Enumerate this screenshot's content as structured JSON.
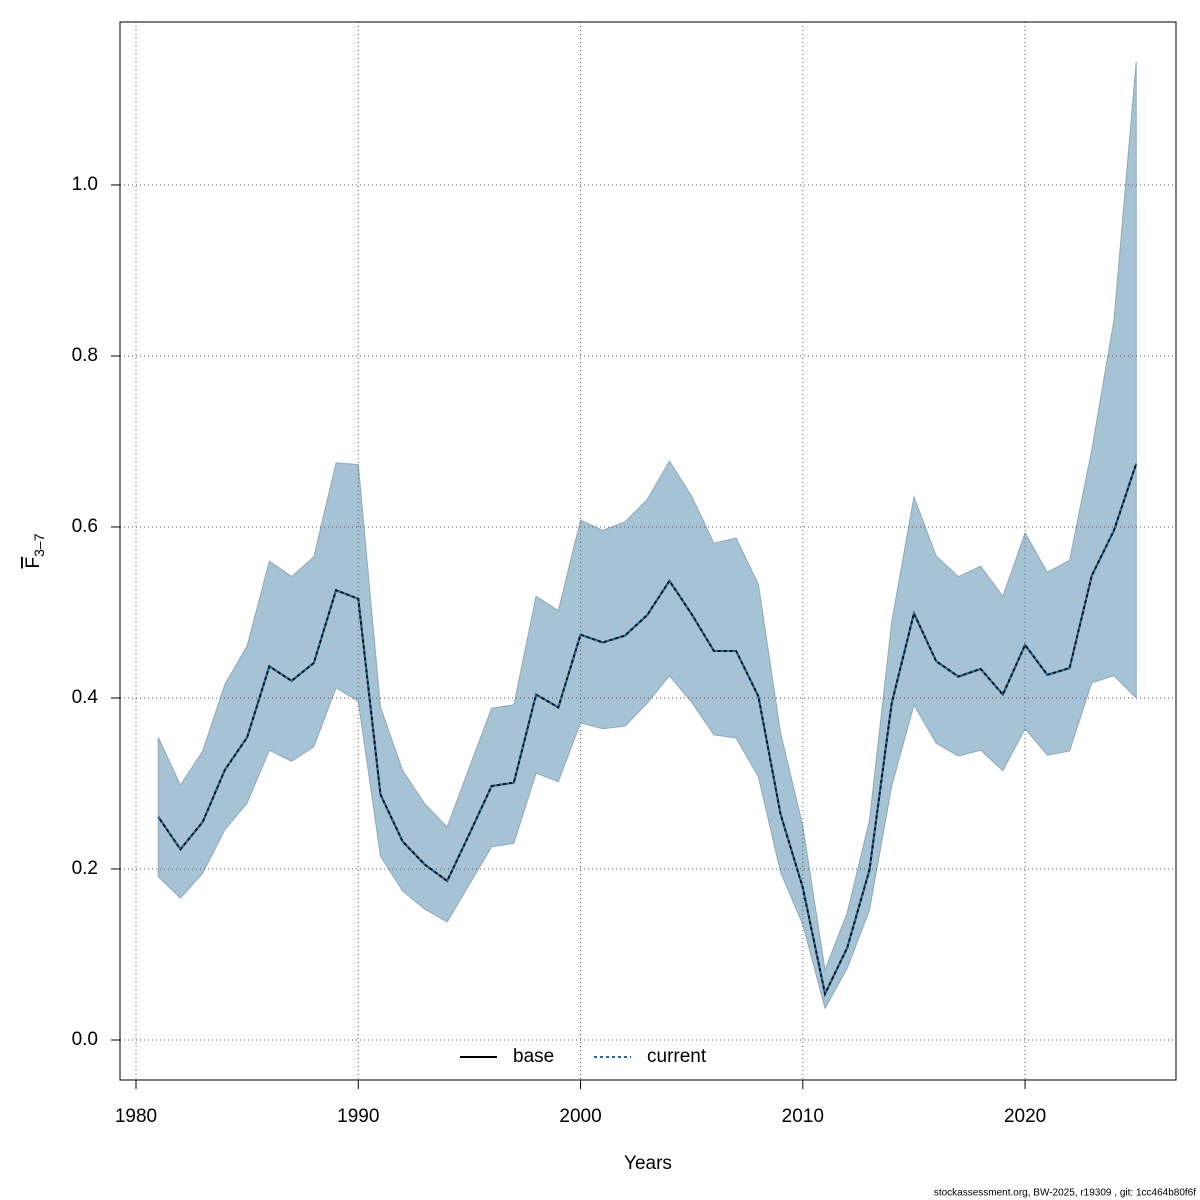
{
  "chart_data": {
    "type": "band-line",
    "x_label": "Years",
    "y_label": {
      "main": "F",
      "sub": "3–7"
    },
    "footer": "stockassessment.org, BW-2025, r19309 , git: 1cc464b80f6f",
    "x": [
      1981,
      1982,
      1983,
      1984,
      1985,
      1986,
      1987,
      1988,
      1989,
      1990,
      1991,
      1992,
      1993,
      1994,
      1995,
      1996,
      1997,
      1998,
      1999,
      2000,
      2001,
      2002,
      2003,
      2004,
      2005,
      2006,
      2007,
      2008,
      2009,
      2010,
      2011,
      2012,
      2013,
      2014,
      2015,
      2016,
      2017,
      2018,
      2019,
      2020,
      2021,
      2022,
      2023,
      2024,
      2025
    ],
    "series": [
      {
        "name": "base",
        "color": "#000000",
        "values": [
          0.261,
          0.223,
          0.255,
          0.316,
          0.354,
          0.437,
          0.42,
          0.441,
          0.526,
          0.516,
          0.287,
          0.232,
          0.205,
          0.186,
          0.241,
          0.297,
          0.301,
          0.404,
          0.389,
          0.474,
          0.465,
          0.473,
          0.497,
          0.537,
          0.498,
          0.455,
          0.455,
          0.402,
          0.264,
          0.178,
          0.054,
          0.108,
          0.199,
          0.394,
          0.499,
          0.443,
          0.425,
          0.434,
          0.404,
          0.462,
          0.427,
          0.435,
          0.543,
          0.596,
          0.674
        ]
      },
      {
        "name": "current",
        "color": "#1f6fa0",
        "values": [
          0.261,
          0.223,
          0.255,
          0.316,
          0.354,
          0.437,
          0.42,
          0.441,
          0.526,
          0.516,
          0.287,
          0.232,
          0.205,
          0.186,
          0.241,
          0.297,
          0.301,
          0.404,
          0.389,
          0.474,
          0.465,
          0.473,
          0.497,
          0.537,
          0.498,
          0.455,
          0.455,
          0.402,
          0.264,
          0.178,
          0.054,
          0.108,
          0.199,
          0.394,
          0.499,
          0.443,
          0.425,
          0.434,
          0.404,
          0.462,
          0.427,
          0.435,
          0.543,
          0.596,
          0.674
        ]
      }
    ],
    "upper": [
      0.354,
      0.298,
      0.338,
      0.416,
      0.461,
      0.56,
      0.542,
      0.565,
      0.675,
      0.673,
      0.389,
      0.315,
      0.276,
      0.249,
      0.319,
      0.388,
      0.392,
      0.519,
      0.502,
      0.608,
      0.596,
      0.606,
      0.632,
      0.677,
      0.636,
      0.581,
      0.587,
      0.533,
      0.359,
      0.25,
      0.082,
      0.149,
      0.257,
      0.489,
      0.635,
      0.566,
      0.542,
      0.554,
      0.519,
      0.593,
      0.547,
      0.561,
      0.69,
      0.842,
      1.144
    ],
    "lower": [
      0.191,
      0.166,
      0.195,
      0.246,
      0.277,
      0.339,
      0.326,
      0.343,
      0.412,
      0.396,
      0.215,
      0.174,
      0.153,
      0.138,
      0.182,
      0.226,
      0.23,
      0.312,
      0.302,
      0.371,
      0.364,
      0.367,
      0.394,
      0.426,
      0.395,
      0.357,
      0.353,
      0.308,
      0.196,
      0.135,
      0.037,
      0.084,
      0.152,
      0.297,
      0.392,
      0.347,
      0.332,
      0.339,
      0.315,
      0.364,
      0.333,
      0.338,
      0.418,
      0.426,
      0.4
    ],
    "band_color": "#a5c3d4",
    "xlim": [
      1979.28,
      2026.79
    ],
    "xticks": [
      1980,
      1990,
      2000,
      2010,
      2020
    ],
    "ylim": [
      -0.0468,
      1.1906
    ],
    "yticks": [
      {
        "value": 0,
        "label": "0.0"
      },
      0.2,
      0.4,
      0.6,
      0.8,
      {
        "value": 1,
        "label": "1.0"
      }
    ],
    "grid": true,
    "legend": "bottom"
  }
}
